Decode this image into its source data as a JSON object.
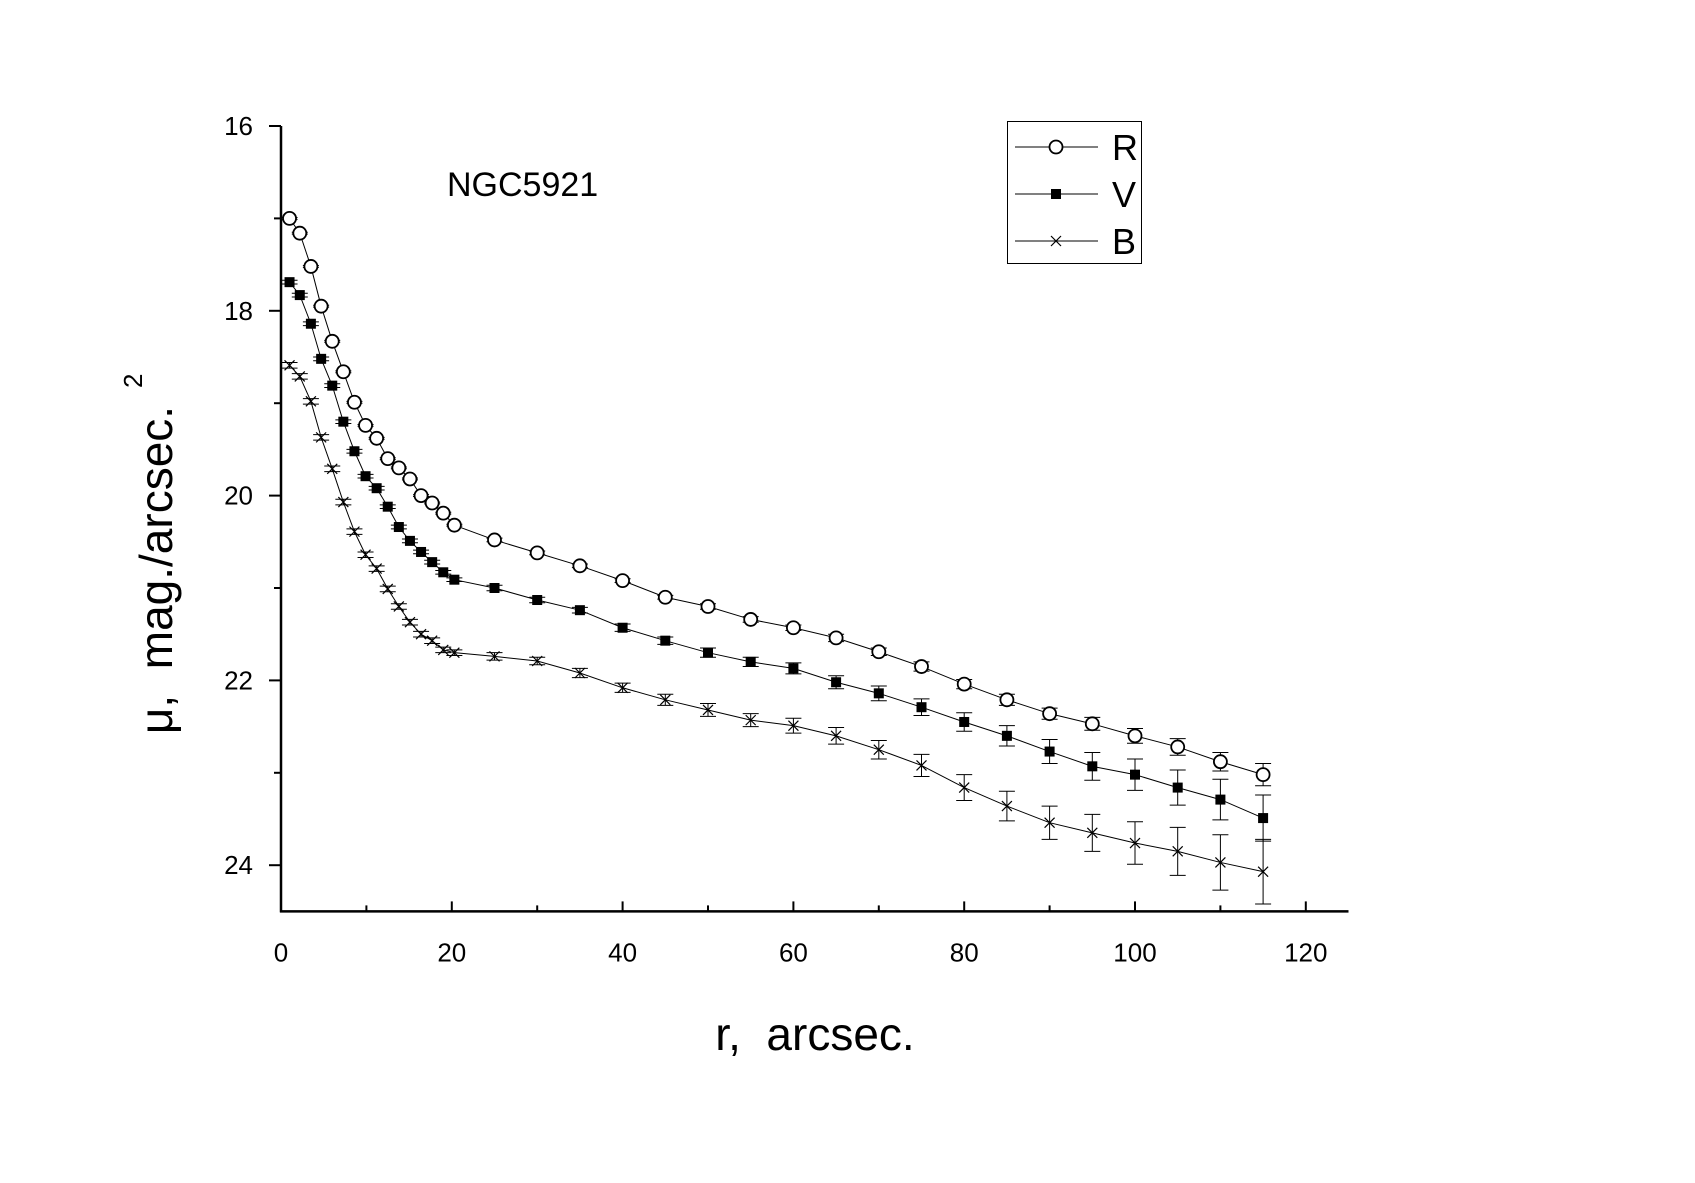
{
  "chart_data": {
    "type": "scatter",
    "title": "NGC5921",
    "xlabel": "r,  arcsec.",
    "ylabel": "μ,  mag./arcsec.",
    "ylabel_sup": "2",
    "xlim": [
      0,
      125
    ],
    "ylim": [
      24.5,
      16
    ],
    "y_inverted": true,
    "x_ticks": [
      0,
      20,
      40,
      60,
      80,
      100,
      120
    ],
    "x_tick_labels": [
      "0",
      "20",
      "40",
      "60",
      "80",
      "100",
      "120"
    ],
    "y_ticks": [
      16,
      18,
      20,
      22,
      24
    ],
    "y_tick_labels": [
      "16",
      "18",
      "20",
      "22",
      "24"
    ],
    "legend_position": "top-right",
    "x": [
      1,
      2.2,
      3.5,
      4.7,
      6,
      7.3,
      8.6,
      9.9,
      11.2,
      12.5,
      13.8,
      15.1,
      16.4,
      17.7,
      19,
      20.3,
      25,
      30,
      35,
      40,
      45,
      50,
      55,
      60,
      65,
      70,
      75,
      80,
      85,
      90,
      95,
      100,
      105,
      110,
      115
    ],
    "series": [
      {
        "name": "R",
        "marker": "open-circle",
        "values": [
          17.0,
          17.16,
          17.52,
          17.95,
          18.33,
          18.66,
          18.99,
          19.24,
          19.38,
          19.6,
          19.7,
          19.82,
          20.0,
          20.08,
          20.19,
          20.32,
          20.48,
          20.62,
          20.76,
          20.92,
          21.1,
          21.2,
          21.34,
          21.43,
          21.54,
          21.69,
          21.85,
          22.04,
          22.21,
          22.36,
          22.47,
          22.6,
          22.72,
          22.88,
          23.02
        ],
        "errors": [
          0.01,
          0.01,
          0.01,
          0.01,
          0.01,
          0.01,
          0.01,
          0.01,
          0.01,
          0.01,
          0.01,
          0.01,
          0.01,
          0.01,
          0.01,
          0.01,
          0.02,
          0.02,
          0.02,
          0.02,
          0.02,
          0.03,
          0.03,
          0.03,
          0.04,
          0.04,
          0.05,
          0.05,
          0.06,
          0.06,
          0.07,
          0.08,
          0.09,
          0.1,
          0.12
        ]
      },
      {
        "name": "V",
        "marker": "filled-square",
        "values": [
          17.69,
          17.83,
          18.14,
          18.52,
          18.81,
          19.2,
          19.52,
          19.79,
          19.92,
          20.12,
          20.34,
          20.49,
          20.61,
          20.72,
          20.83,
          20.91,
          21.0,
          21.13,
          21.24,
          21.43,
          21.57,
          21.7,
          21.8,
          21.87,
          22.02,
          22.14,
          22.29,
          22.45,
          22.6,
          22.77,
          22.93,
          23.02,
          23.16,
          23.29,
          23.49
        ],
        "errors": [
          0.02,
          0.02,
          0.02,
          0.02,
          0.02,
          0.02,
          0.02,
          0.02,
          0.02,
          0.02,
          0.02,
          0.02,
          0.02,
          0.02,
          0.02,
          0.02,
          0.03,
          0.03,
          0.03,
          0.04,
          0.04,
          0.05,
          0.05,
          0.06,
          0.07,
          0.08,
          0.09,
          0.1,
          0.11,
          0.13,
          0.15,
          0.17,
          0.19,
          0.22,
          0.25
        ]
      },
      {
        "name": "B",
        "marker": "cross",
        "values": [
          18.59,
          18.71,
          18.98,
          19.37,
          19.71,
          20.07,
          20.39,
          20.64,
          20.79,
          21.01,
          21.2,
          21.37,
          21.5,
          21.57,
          21.67,
          21.7,
          21.74,
          21.79,
          21.92,
          22.08,
          22.21,
          22.32,
          22.43,
          22.49,
          22.6,
          22.75,
          22.92,
          23.16,
          23.36,
          23.54,
          23.65,
          23.76,
          23.85,
          23.97,
          24.07
        ],
        "errors": [
          0.03,
          0.03,
          0.03,
          0.03,
          0.03,
          0.03,
          0.03,
          0.03,
          0.03,
          0.03,
          0.03,
          0.03,
          0.03,
          0.03,
          0.03,
          0.03,
          0.04,
          0.04,
          0.05,
          0.05,
          0.06,
          0.07,
          0.07,
          0.08,
          0.09,
          0.1,
          0.12,
          0.14,
          0.16,
          0.18,
          0.2,
          0.23,
          0.26,
          0.3,
          0.35
        ]
      }
    ]
  }
}
